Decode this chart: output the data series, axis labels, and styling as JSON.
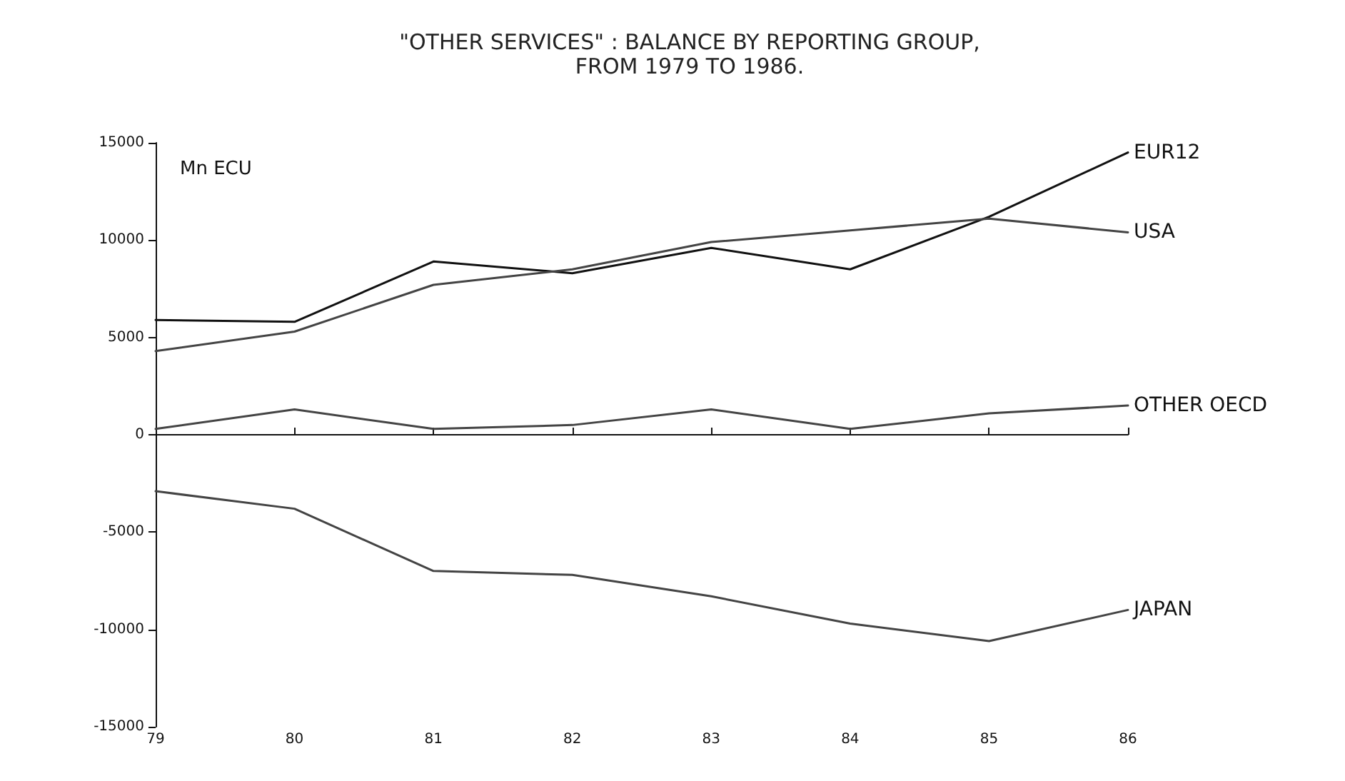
{
  "chart_data": {
    "type": "line",
    "title": "\"OTHER SERVICES\" : BALANCE BY REPORTING GROUP,\nFROM 1979 TO 1986.",
    "ylabel": "Mn ECU",
    "categories": [
      "79",
      "80",
      "81",
      "82",
      "83",
      "84",
      "85",
      "86"
    ],
    "series": [
      {
        "name": "EUR12",
        "color": "#111111",
        "values": [
          5900,
          5800,
          8900,
          8300,
          9600,
          8500,
          11200,
          14500
        ]
      },
      {
        "name": "USA",
        "color": "#444444",
        "values": [
          4300,
          5300,
          7700,
          8500,
          9900,
          10500,
          11100,
          10400
        ]
      },
      {
        "name": "OTHER OECD",
        "color": "#444444",
        "values": [
          300,
          1300,
          300,
          500,
          1300,
          300,
          1100,
          1500
        ]
      },
      {
        "name": "JAPAN",
        "color": "#444444",
        "values": [
          -2900,
          -3800,
          -7000,
          -7200,
          -8300,
          -9700,
          -10600,
          -9000
        ]
      }
    ],
    "ylim": [
      -15000,
      15000
    ],
    "yticks": [
      -15000,
      -10000,
      -5000,
      0,
      5000,
      10000,
      15000
    ],
    "legend": false,
    "marker": "none",
    "line_style": "solid"
  }
}
